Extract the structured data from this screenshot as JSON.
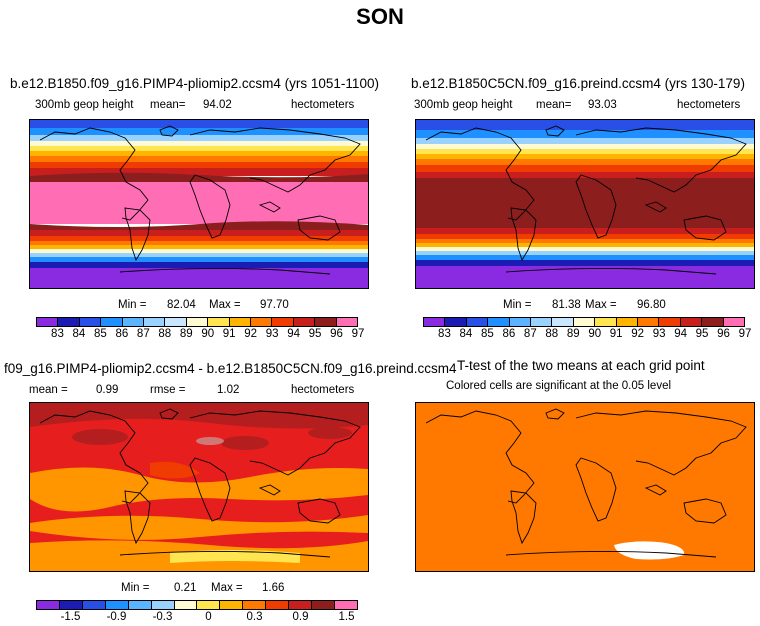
{
  "title": "SON",
  "panels": {
    "top_left": {
      "title": "b.e12.B1850.f09_g16.PIMP4-pliomip2.ccsm4 (yrs 1051-1100)",
      "variable": "300mb geop height",
      "stat_label": "mean=",
      "stat_value": "94.02",
      "units": "hectometers",
      "min_label": "Min =",
      "min_value": "82.04",
      "max_label": "Max =",
      "max_value": "97.70"
    },
    "top_right": {
      "title": "b.e12.B1850C5CN.f09_g16.preind.ccsm4 (yrs 130-179)",
      "variable": "300mb geop height",
      "stat_label": "mean=",
      "stat_value": "93.03",
      "units": "hectometers",
      "min_label": "Min =",
      "min_value": "81.38",
      "max_label": "Max =",
      "max_value": "96.80"
    },
    "bottom_left": {
      "title": "f09_g16.PIMP4-pliomip2.ccsm4 - b.e12.B1850C5CN.f09_g16.preind.ccsm4",
      "mean_label": "mean =",
      "mean_value": "0.99",
      "rmse_label": "rmse =",
      "rmse_value": "1.02",
      "units": "hectometers",
      "min_label": "Min =",
      "min_value": "0.21",
      "max_label": "Max =",
      "max_value": "1.66"
    },
    "bottom_right": {
      "title": "T-test of the two means at each grid point",
      "subtitle": "Colored cells are significant at the 0.05 level"
    }
  },
  "legends": {
    "abs": {
      "colors": [
        "#8a2be2",
        "#1c1cb4",
        "#2850e6",
        "#1e90ff",
        "#5ab4ff",
        "#9ad2ff",
        "#c8e6ff",
        "#fffad2",
        "#ffe650",
        "#ffb400",
        "#ff7800",
        "#f03c00",
        "#c81e1e",
        "#8c1e1e",
        "#ff6eb4"
      ],
      "labels": [
        "83",
        "84",
        "85",
        "86",
        "87",
        "88",
        "89",
        "90",
        "91",
        "92",
        "93",
        "94",
        "95",
        "96",
        "97"
      ]
    },
    "diff": {
      "colors": [
        "#8a2be2",
        "#1c1cb4",
        "#2850e6",
        "#1e90ff",
        "#5ab4ff",
        "#9ad2ff",
        "#fffad2",
        "#ffe650",
        "#ffb400",
        "#ff7800",
        "#f03c00",
        "#c81e1e",
        "#8c1e1e",
        "#ff6eb4"
      ],
      "labels": [
        "-1.5",
        "-0.9",
        "-0.3",
        "0",
        "0.3",
        "0.9",
        "1.5"
      ]
    }
  },
  "colors": {
    "ttest_fill": "#ff7800",
    "ttest_insignificant": "#ffffff",
    "diff_base": "#e61e1e",
    "diff_dark": "#b41e1e",
    "diff_orange": "#ff9600"
  }
}
